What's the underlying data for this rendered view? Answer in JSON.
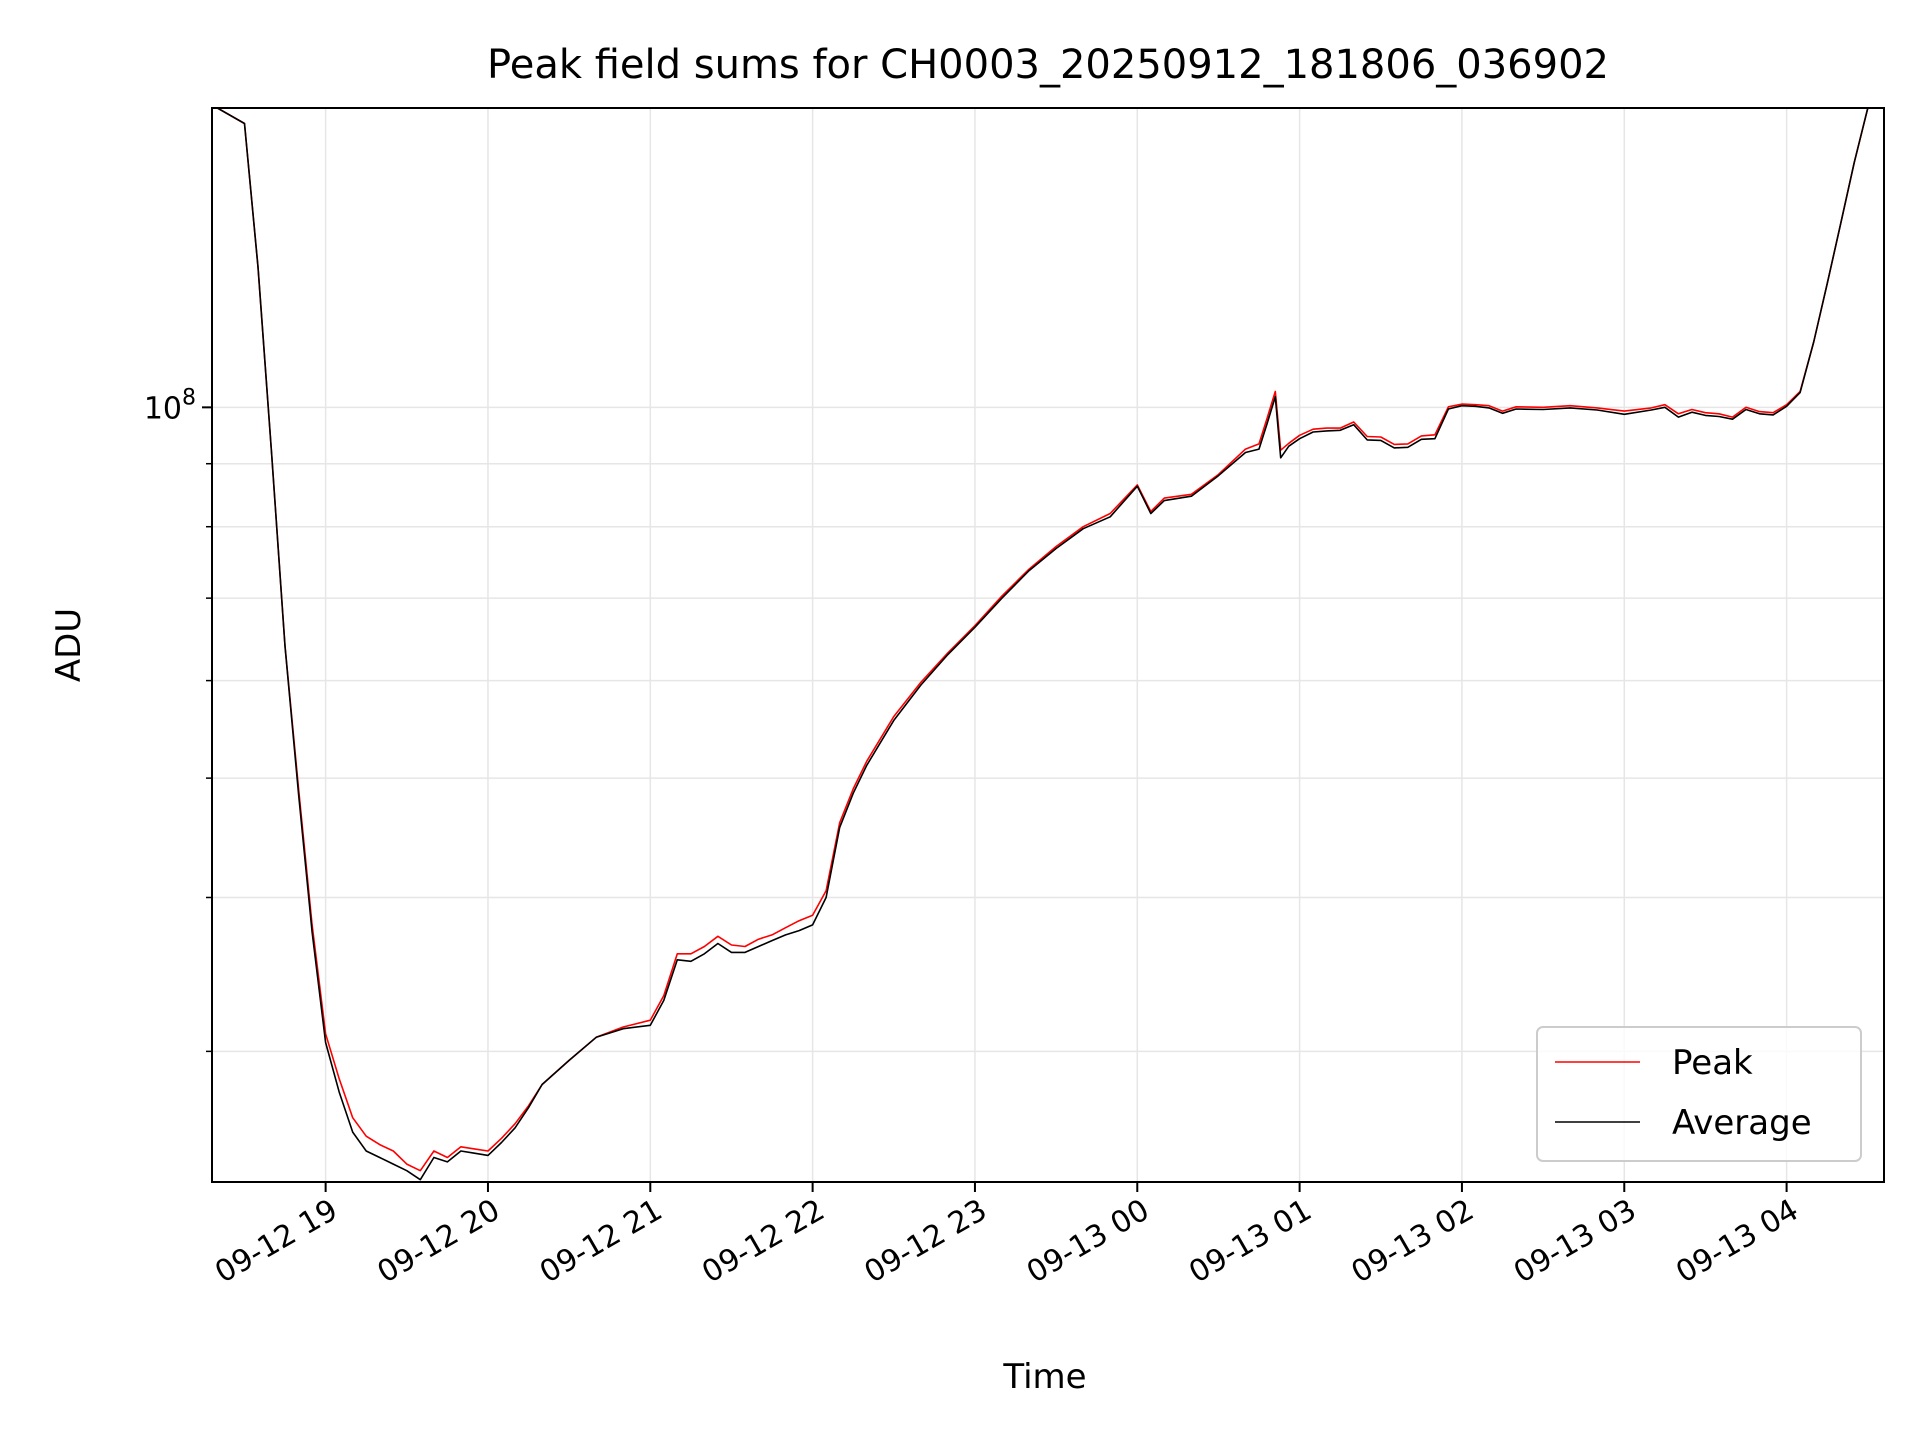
{
  "chart_data": {
    "type": "line",
    "title": "Peak field sums for CH0003_20250912_181806_036902",
    "xlabel": "Time",
    "ylabel": "ADU",
    "y_scale": "log",
    "ylim": [
      23500000,
      175000000
    ],
    "xlim": [
      "2025-09-12 18:18",
      "2025-09-13 04:36"
    ],
    "grid": true,
    "legend": "lower right",
    "x_tick_labels": [
      "09-12 19",
      "09-12 20",
      "09-12 21",
      "09-12 22",
      "09-12 23",
      "09-13 00",
      "09-13 01",
      "09-13 02",
      "09-13 03",
      "09-13 04"
    ],
    "x_ticks": [
      "2025-09-12 19:00",
      "2025-09-12 20:00",
      "2025-09-12 21:00",
      "2025-09-12 22:00",
      "2025-09-12 23:00",
      "2025-09-13 00:00",
      "2025-09-13 01:00",
      "2025-09-13 02:00",
      "2025-09-13 03:00",
      "2025-09-13 04:00"
    ],
    "y_major_ticks": [
      {
        "value": 100000000,
        "base": "10",
        "exp": "8"
      }
    ],
    "y_minor_ticks": [
      30000000,
      40000000,
      50000000,
      60000000,
      70000000,
      80000000,
      90000000
    ],
    "series": [
      {
        "name": "Peak",
        "color": "#ff0000",
        "x": [
          "2025-09-12 18:20",
          "2025-09-12 18:30",
          "2025-09-12 18:35",
          "2025-09-12 18:40",
          "2025-09-12 18:45",
          "2025-09-12 18:50",
          "2025-09-12 18:55",
          "2025-09-12 19:00",
          "2025-09-12 19:05",
          "2025-09-12 19:10",
          "2025-09-12 19:15",
          "2025-09-12 19:20",
          "2025-09-12 19:25",
          "2025-09-12 19:30",
          "2025-09-12 19:35",
          "2025-09-12 19:40",
          "2025-09-12 19:45",
          "2025-09-12 19:50",
          "2025-09-12 19:55",
          "2025-09-12 20:00",
          "2025-09-12 20:05",
          "2025-09-12 20:10",
          "2025-09-12 20:15",
          "2025-09-12 20:20",
          "2025-09-12 20:30",
          "2025-09-12 20:40",
          "2025-09-12 20:50",
          "2025-09-12 21:00",
          "2025-09-12 21:05",
          "2025-09-12 21:10",
          "2025-09-12 21:15",
          "2025-09-12 21:20",
          "2025-09-12 21:25",
          "2025-09-12 21:30",
          "2025-09-12 21:35",
          "2025-09-12 21:40",
          "2025-09-12 21:45",
          "2025-09-12 21:50",
          "2025-09-12 21:55",
          "2025-09-12 22:00",
          "2025-09-12 22:05",
          "2025-09-12 22:10",
          "2025-09-12 22:15",
          "2025-09-12 22:20",
          "2025-09-12 22:30",
          "2025-09-12 22:40",
          "2025-09-12 22:50",
          "2025-09-12 23:00",
          "2025-09-12 23:10",
          "2025-09-12 23:20",
          "2025-09-12 23:30",
          "2025-09-12 23:40",
          "2025-09-12 23:50",
          "2025-09-13 00:00",
          "2025-09-13 00:05",
          "2025-09-13 00:10",
          "2025-09-13 00:20",
          "2025-09-13 00:30",
          "2025-09-13 00:40",
          "2025-09-13 00:45",
          "2025-09-13 00:48",
          "2025-09-13 00:51",
          "2025-09-13 00:53",
          "2025-09-13 00:56",
          "2025-09-13 01:00",
          "2025-09-13 01:05",
          "2025-09-13 01:10",
          "2025-09-13 01:15",
          "2025-09-13 01:20",
          "2025-09-13 01:25",
          "2025-09-13 01:30",
          "2025-09-13 01:35",
          "2025-09-13 01:40",
          "2025-09-13 01:45",
          "2025-09-13 01:50",
          "2025-09-13 01:55",
          "2025-09-13 02:00",
          "2025-09-13 02:05",
          "2025-09-13 02:10",
          "2025-09-13 02:15",
          "2025-09-13 02:20",
          "2025-09-13 02:30",
          "2025-09-13 02:40",
          "2025-09-13 02:50",
          "2025-09-13 03:00",
          "2025-09-13 03:10",
          "2025-09-13 03:15",
          "2025-09-13 03:20",
          "2025-09-13 03:25",
          "2025-09-13 03:30",
          "2025-09-13 03:35",
          "2025-09-13 03:40",
          "2025-09-13 03:45",
          "2025-09-13 03:50",
          "2025-09-13 03:55",
          "2025-09-13 04:00",
          "2025-09-13 04:05",
          "2025-09-13 04:10",
          "2025-09-13 04:15",
          "2025-09-13 04:20",
          "2025-09-13 04:25",
          "2025-09-13 04:30",
          "2025-09-13 04:35"
        ],
        "values": [
          175000000,
          170000000,
          130000000,
          92000000,
          64000000,
          49000000,
          38000000,
          31000000,
          28500000,
          26500000,
          25600000,
          25200000,
          24900000,
          24300000,
          24000000,
          24900000,
          24600000,
          25100000,
          25000000,
          24900000,
          25500000,
          26200000,
          27100000,
          28200000,
          29500000,
          30800000,
          31400000,
          31800000,
          33300000,
          36000000,
          36000000,
          36500000,
          37200000,
          36600000,
          36500000,
          37000000,
          37300000,
          37800000,
          38300000,
          38700000,
          40500000,
          46000000,
          49000000,
          51600000,
          56100000,
          59800000,
          63200000,
          66500000,
          70300000,
          73900000,
          77100000,
          80000000,
          82000000,
          86500000,
          82300000,
          84400000,
          85000000,
          88200000,
          92500000,
          93400000,
          98000000,
          103000000,
          92300000,
          93500000,
          94900000,
          96000000,
          96200000,
          96200000,
          97300000,
          94700000,
          94600000,
          93300000,
          93400000,
          94800000,
          95000000,
          100100000,
          100600000,
          100500000,
          100300000,
          99300000,
          100100000,
          100000000,
          100300000,
          99900000,
          99300000,
          99900000,
          100500000,
          98800000,
          99600000,
          99000000,
          98800000,
          98200000,
          100000000,
          99200000,
          99000000,
          100500000,
          103000000,
          113000000,
          126000000,
          141000000,
          158000000,
          175000000,
          175000000
        ]
      },
      {
        "name": "Average",
        "color": "#000000",
        "x": [
          "2025-09-12 18:20",
          "2025-09-12 18:30",
          "2025-09-12 18:35",
          "2025-09-12 18:40",
          "2025-09-12 18:45",
          "2025-09-12 18:50",
          "2025-09-12 18:55",
          "2025-09-12 19:00",
          "2025-09-12 19:05",
          "2025-09-12 19:10",
          "2025-09-12 19:15",
          "2025-09-12 19:20",
          "2025-09-12 19:25",
          "2025-09-12 19:30",
          "2025-09-12 19:35",
          "2025-09-12 19:40",
          "2025-09-12 19:45",
          "2025-09-12 19:50",
          "2025-09-12 19:55",
          "2025-09-12 20:00",
          "2025-09-12 20:05",
          "2025-09-12 20:10",
          "2025-09-12 20:15",
          "2025-09-12 20:20",
          "2025-09-12 20:30",
          "2025-09-12 20:40",
          "2025-09-12 20:50",
          "2025-09-12 21:00",
          "2025-09-12 21:05",
          "2025-09-12 21:10",
          "2025-09-12 21:15",
          "2025-09-12 21:20",
          "2025-09-12 21:25",
          "2025-09-12 21:30",
          "2025-09-12 21:35",
          "2025-09-12 21:40",
          "2025-09-12 21:45",
          "2025-09-12 21:50",
          "2025-09-12 21:55",
          "2025-09-12 22:00",
          "2025-09-12 22:05",
          "2025-09-12 22:10",
          "2025-09-12 22:15",
          "2025-09-12 22:20",
          "2025-09-12 22:30",
          "2025-09-12 22:40",
          "2025-09-12 22:50",
          "2025-09-12 23:00",
          "2025-09-12 23:10",
          "2025-09-12 23:20",
          "2025-09-12 23:30",
          "2025-09-12 23:40",
          "2025-09-12 23:50",
          "2025-09-13 00:00",
          "2025-09-13 00:05",
          "2025-09-13 00:10",
          "2025-09-13 00:20",
          "2025-09-13 00:30",
          "2025-09-13 00:40",
          "2025-09-13 00:45",
          "2025-09-13 00:48",
          "2025-09-13 00:51",
          "2025-09-13 00:53",
          "2025-09-13 00:56",
          "2025-09-13 01:00",
          "2025-09-13 01:05",
          "2025-09-13 01:10",
          "2025-09-13 01:15",
          "2025-09-13 01:20",
          "2025-09-13 01:25",
          "2025-09-13 01:30",
          "2025-09-13 01:35",
          "2025-09-13 01:40",
          "2025-09-13 01:45",
          "2025-09-13 01:50",
          "2025-09-13 01:55",
          "2025-09-13 02:00",
          "2025-09-13 02:05",
          "2025-09-13 02:10",
          "2025-09-13 02:15",
          "2025-09-13 02:20",
          "2025-09-13 02:30",
          "2025-09-13 02:40",
          "2025-09-13 02:50",
          "2025-09-13 03:00",
          "2025-09-13 03:10",
          "2025-09-13 03:15",
          "2025-09-13 03:20",
          "2025-09-13 03:25",
          "2025-09-13 03:30",
          "2025-09-13 03:35",
          "2025-09-13 03:40",
          "2025-09-13 03:45",
          "2025-09-13 03:50",
          "2025-09-13 03:55",
          "2025-09-13 04:00",
          "2025-09-13 04:05",
          "2025-09-13 04:10",
          "2025-09-13 04:15",
          "2025-09-13 04:20",
          "2025-09-13 04:25",
          "2025-09-13 04:30",
          "2025-09-13 04:35"
        ],
        "values": [
          175000000,
          170000000,
          130000000,
          92000000,
          64000000,
          48500000,
          37500000,
          30500000,
          27800000,
          25800000,
          24900000,
          24600000,
          24300000,
          24000000,
          23600000,
          24600000,
          24400000,
          24900000,
          24800000,
          24700000,
          25300000,
          26000000,
          27000000,
          28200000,
          29500000,
          30800000,
          31300000,
          31500000,
          33000000,
          35600000,
          35500000,
          36000000,
          36700000,
          36100000,
          36100000,
          36500000,
          36900000,
          37300000,
          37600000,
          38000000,
          40000000,
          45600000,
          48600000,
          51200000,
          55700000,
          59500000,
          63000000,
          66300000,
          70000000,
          73700000,
          76800000,
          79700000,
          81500000,
          86300000,
          82000000,
          84000000,
          84700000,
          88000000,
          91900000,
          92500000,
          97000000,
          102000000,
          91000000,
          93000000,
          94300000,
          95500000,
          95700000,
          95800000,
          96800000,
          94100000,
          94000000,
          92700000,
          92800000,
          94200000,
          94300000,
          99700000,
          100300000,
          100200000,
          99900000,
          98900000,
          99700000,
          99600000,
          99900000,
          99500000,
          98700000,
          99500000,
          100000000,
          98200000,
          99100000,
          98500000,
          98300000,
          97800000,
          99600000,
          98800000,
          98600000,
          100200000,
          102800000,
          113000000,
          126000000,
          141000000,
          158000000,
          175000000,
          175000000
        ]
      }
    ]
  }
}
